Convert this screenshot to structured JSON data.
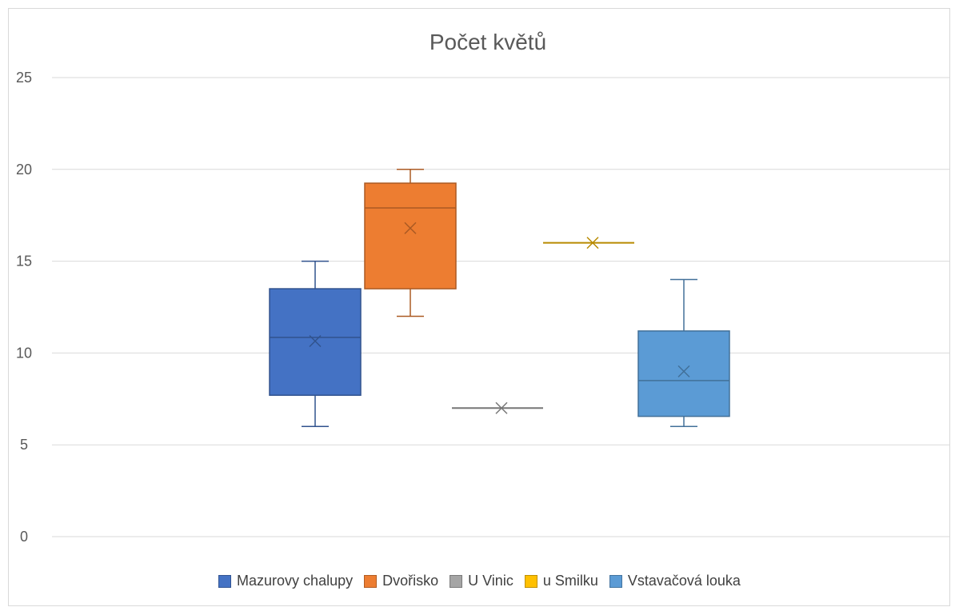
{
  "chart_data": {
    "type": "box",
    "title": "Počet květů",
    "ylim": [
      0,
      25
    ],
    "yticks": [
      0,
      5,
      10,
      15,
      20,
      25
    ],
    "grid": true,
    "legend_position": "bottom",
    "series": [
      {
        "name": "Mazurovy chalupy",
        "color": "#4472c4",
        "min": 6,
        "q1": 7.7,
        "median": 10.85,
        "q3": 13.5,
        "max": 15,
        "mean": 10.65
      },
      {
        "name": "Dvořisko",
        "color": "#ed7d31",
        "min": 12,
        "q1": 13.5,
        "median": 17.9,
        "q3": 19.25,
        "max": 20,
        "mean": 16.8
      },
      {
        "name": "U Vinic",
        "color": "#a5a5a5",
        "min": 7,
        "q1": 7,
        "median": 7,
        "q3": 7,
        "max": 7,
        "mean": 7
      },
      {
        "name": "u Smilku",
        "color": "#ffc000",
        "min": 16,
        "q1": 16,
        "median": 16,
        "q3": 16,
        "max": 16,
        "mean": 16
      },
      {
        "name": "Vstavačová louka",
        "color": "#5b9bd5",
        "min": 6,
        "q1": 6.55,
        "median": 8.5,
        "q3": 11.2,
        "max": 14,
        "mean": 9
      }
    ]
  }
}
